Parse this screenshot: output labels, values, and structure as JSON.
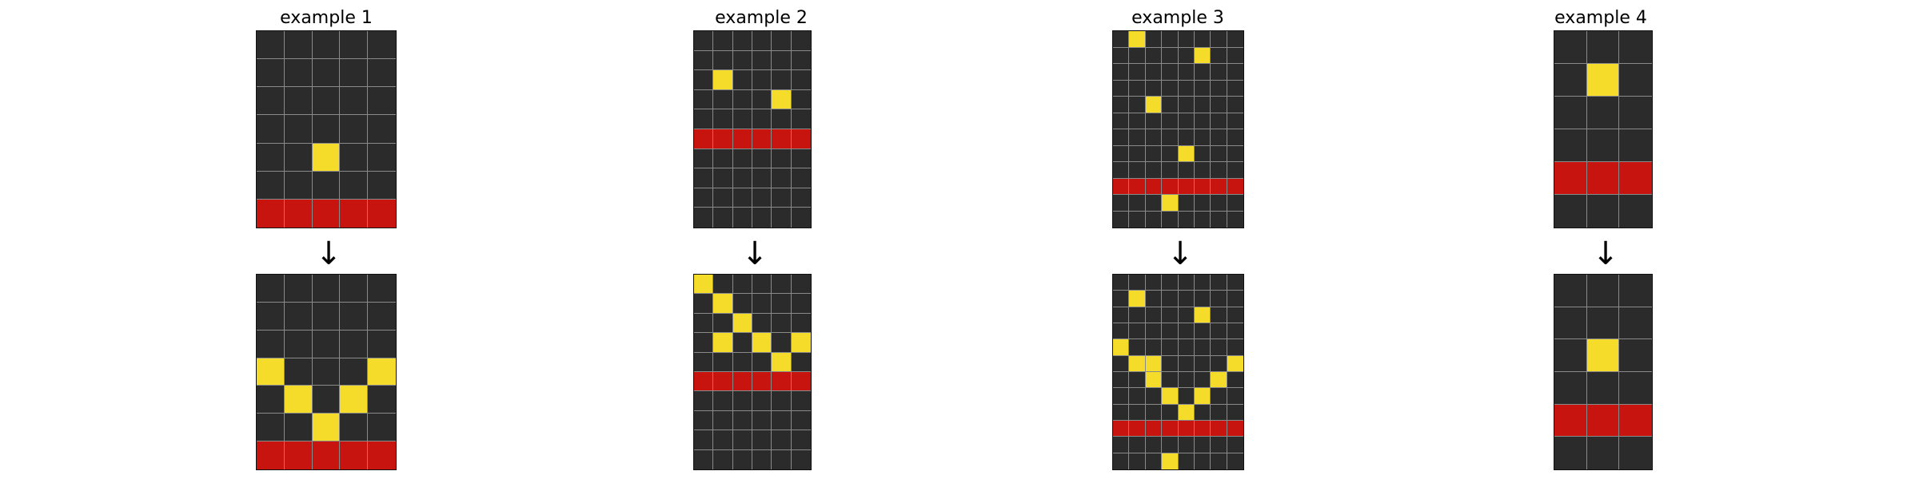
{
  "colors": {
    "0": "#2b2b2b",
    "4": "#f6dc2a",
    "2": "#c8140f"
  },
  "arrow_glyph": "↓",
  "examples": [
    {
      "title": "example 1",
      "input": [
        [
          0,
          0,
          0,
          0,
          0
        ],
        [
          0,
          0,
          0,
          0,
          0
        ],
        [
          0,
          0,
          0,
          0,
          0
        ],
        [
          0,
          0,
          0,
          0,
          0
        ],
        [
          0,
          0,
          4,
          0,
          0
        ],
        [
          0,
          0,
          0,
          0,
          0
        ],
        [
          2,
          2,
          2,
          2,
          2
        ]
      ],
      "output": [
        [
          0,
          0,
          0,
          0,
          0
        ],
        [
          0,
          0,
          0,
          0,
          0
        ],
        [
          0,
          0,
          0,
          0,
          0
        ],
        [
          4,
          0,
          0,
          0,
          4
        ],
        [
          0,
          4,
          0,
          4,
          0
        ],
        [
          0,
          0,
          4,
          0,
          0
        ],
        [
          2,
          2,
          2,
          2,
          2
        ]
      ]
    },
    {
      "title": "example 2",
      "input": [
        [
          0,
          0,
          0,
          0,
          0,
          0
        ],
        [
          0,
          0,
          0,
          0,
          0,
          0
        ],
        [
          0,
          4,
          0,
          0,
          0,
          0
        ],
        [
          0,
          0,
          0,
          0,
          4,
          0
        ],
        [
          0,
          0,
          0,
          0,
          0,
          0
        ],
        [
          2,
          2,
          2,
          2,
          2,
          2
        ],
        [
          0,
          0,
          0,
          0,
          0,
          0
        ],
        [
          0,
          0,
          0,
          0,
          0,
          0
        ],
        [
          0,
          0,
          0,
          0,
          0,
          0
        ],
        [
          0,
          0,
          0,
          0,
          0,
          0
        ]
      ],
      "output": [
        [
          4,
          0,
          0,
          0,
          0,
          0
        ],
        [
          0,
          4,
          0,
          0,
          0,
          0
        ],
        [
          0,
          0,
          4,
          0,
          0,
          0
        ],
        [
          0,
          4,
          0,
          4,
          0,
          4
        ],
        [
          0,
          0,
          0,
          0,
          4,
          0
        ],
        [
          2,
          2,
          2,
          2,
          2,
          2
        ],
        [
          0,
          0,
          0,
          0,
          0,
          0
        ],
        [
          0,
          0,
          0,
          0,
          0,
          0
        ],
        [
          0,
          0,
          0,
          0,
          0,
          0
        ],
        [
          0,
          0,
          0,
          0,
          0,
          0
        ]
      ]
    },
    {
      "title": "example 3",
      "input": [
        [
          0,
          4,
          0,
          0,
          0,
          0,
          0,
          0
        ],
        [
          0,
          0,
          0,
          0,
          0,
          4,
          0,
          0
        ],
        [
          0,
          0,
          0,
          0,
          0,
          0,
          0,
          0
        ],
        [
          0,
          0,
          0,
          0,
          0,
          0,
          0,
          0
        ],
        [
          0,
          0,
          4,
          0,
          0,
          0,
          0,
          0
        ],
        [
          0,
          0,
          0,
          0,
          0,
          0,
          0,
          0
        ],
        [
          0,
          0,
          0,
          0,
          0,
          0,
          0,
          0
        ],
        [
          0,
          0,
          0,
          0,
          4,
          0,
          0,
          0
        ],
        [
          0,
          0,
          0,
          0,
          0,
          0,
          0,
          0
        ],
        [
          2,
          2,
          2,
          2,
          2,
          2,
          2,
          2
        ],
        [
          0,
          0,
          0,
          4,
          0,
          0,
          0,
          0
        ],
        [
          0,
          0,
          0,
          0,
          0,
          0,
          0,
          0
        ]
      ],
      "output": [
        [
          0,
          0,
          0,
          0,
          0,
          0,
          0,
          0
        ],
        [
          0,
          4,
          0,
          0,
          0,
          0,
          0,
          0
        ],
        [
          0,
          0,
          0,
          0,
          0,
          4,
          0,
          0
        ],
        [
          0,
          0,
          0,
          0,
          0,
          0,
          0,
          0
        ],
        [
          4,
          0,
          0,
          0,
          0,
          0,
          0,
          0
        ],
        [
          0,
          4,
          4,
          0,
          0,
          0,
          0,
          4
        ],
        [
          0,
          0,
          4,
          0,
          0,
          0,
          4,
          0
        ],
        [
          0,
          0,
          0,
          4,
          0,
          4,
          0,
          0
        ],
        [
          0,
          0,
          0,
          0,
          4,
          0,
          0,
          0
        ],
        [
          2,
          2,
          2,
          2,
          2,
          2,
          2,
          2
        ],
        [
          0,
          0,
          0,
          0,
          0,
          0,
          0,
          0
        ],
        [
          0,
          0,
          0,
          4,
          0,
          0,
          0,
          0
        ]
      ]
    },
    {
      "title": "example 4",
      "input": [
        [
          0,
          0,
          0
        ],
        [
          0,
          4,
          0
        ],
        [
          0,
          0,
          0
        ],
        [
          0,
          0,
          0
        ],
        [
          2,
          2,
          2
        ],
        [
          0,
          0,
          0
        ]
      ],
      "output": [
        [
          0,
          0,
          0
        ],
        [
          0,
          0,
          0
        ],
        [
          0,
          4,
          0
        ],
        [
          0,
          0,
          0
        ],
        [
          2,
          2,
          2
        ],
        [
          0,
          0,
          0
        ]
      ]
    }
  ]
}
